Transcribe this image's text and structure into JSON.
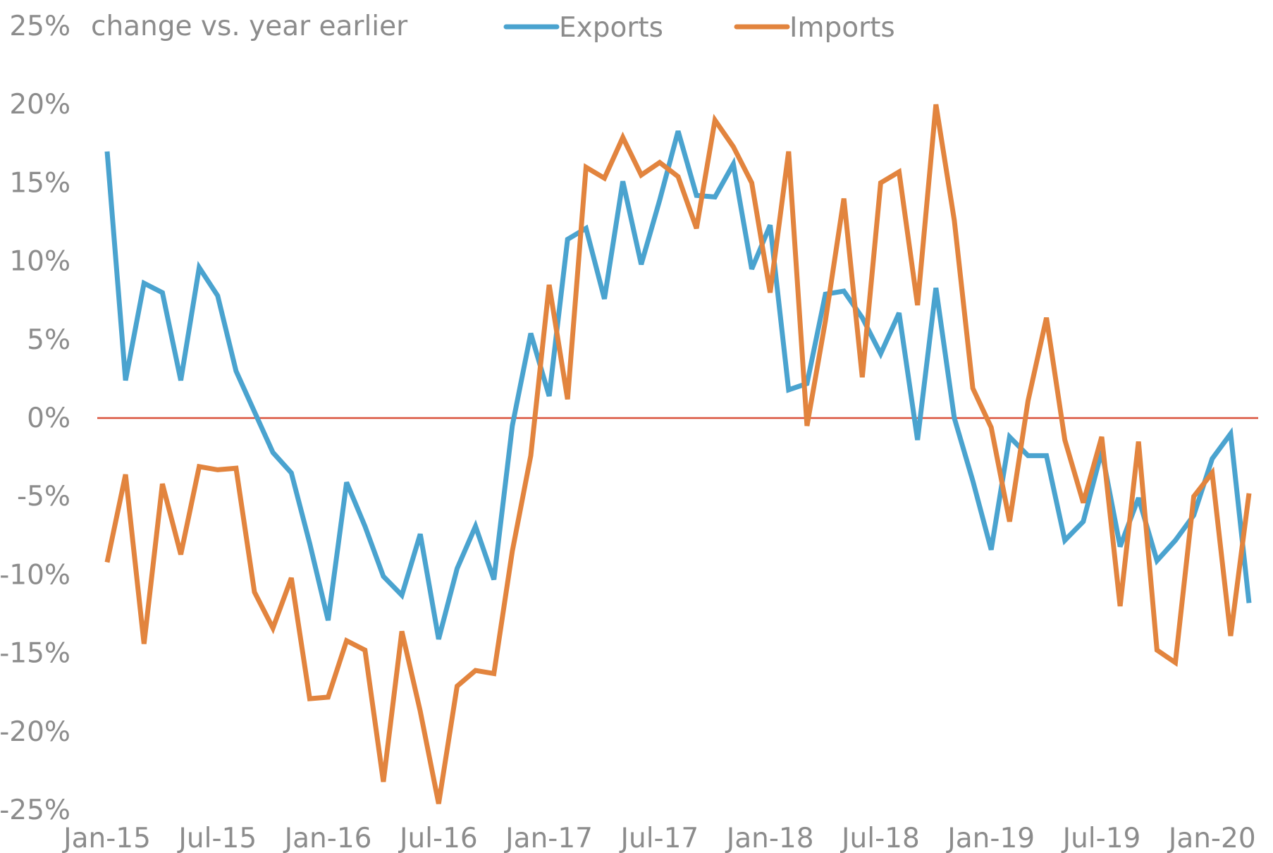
{
  "chart_data": {
    "type": "line",
    "ylabel": "change vs. year earlier",
    "ylim": [
      -25,
      25
    ],
    "yticks": [
      25,
      20,
      15,
      10,
      5,
      0,
      -5,
      -10,
      -15,
      -20,
      -25
    ],
    "ytick_labels": [
      "25%",
      "20%",
      "15%",
      "10%",
      "5%",
      "0%",
      "-5%",
      "-10%",
      "-15%",
      "-20%",
      "-25%"
    ],
    "xtick_labels": [
      "Jan-15",
      "Jul-15",
      "Jan-16",
      "Jul-16",
      "Jan-17",
      "Jul-17",
      "Jan-18",
      "Jul-18",
      "Jan-19",
      "Jul-19",
      "Jan-20"
    ],
    "xtick_index": [
      0,
      6,
      12,
      18,
      24,
      30,
      36,
      42,
      48,
      54,
      60
    ],
    "x_count": 63,
    "zero_line_color": "#d9513a",
    "series": [
      {
        "name": "Exports",
        "color": "#4aa3cf",
        "values": [
          17.0,
          2.4,
          8.6,
          8.0,
          2.4,
          9.6,
          7.8,
          3.0,
          0.4,
          -2.2,
          -3.5,
          -8.0,
          -12.9,
          -4.1,
          -6.9,
          -10.1,
          -11.3,
          -7.4,
          -14.1,
          -9.6,
          -6.9,
          -10.3,
          -0.5,
          5.4,
          1.4,
          11.4,
          12.1,
          7.6,
          15.1,
          9.8,
          13.9,
          18.3,
          14.2,
          14.1,
          16.2,
          9.5,
          12.3,
          1.8,
          2.2,
          7.9,
          8.1,
          6.4,
          4.1,
          6.7,
          -1.4,
          8.3,
          0.0,
          -4.0,
          -8.4,
          -1.2,
          -2.4,
          -2.4,
          -7.8,
          -6.6,
          -2.1,
          -8.2,
          -5.1,
          -9.1,
          -7.8,
          -6.2,
          -2.6,
          -1.0,
          -11.8
        ]
      },
      {
        "name": "Imports",
        "color": "#e2843e",
        "values": [
          -9.2,
          -3.6,
          -14.4,
          -4.2,
          -8.7,
          -3.1,
          -3.3,
          -3.2,
          -11.1,
          -13.4,
          -10.2,
          -17.9,
          -17.8,
          -14.2,
          -14.8,
          -23.2,
          -13.6,
          -18.7,
          -24.6,
          -17.1,
          -16.1,
          -16.3,
          -8.5,
          -2.4,
          8.5,
          1.2,
          16.0,
          15.3,
          17.9,
          15.5,
          16.3,
          15.4,
          12.1,
          19.0,
          17.3,
          15.0,
          8.0,
          17.0,
          -0.5,
          6.2,
          14.0,
          2.6,
          15.0,
          15.7,
          7.2,
          20.0,
          12.6,
          1.9,
          -0.6,
          -6.6,
          1.1,
          6.4,
          -1.4,
          -5.4,
          -1.2,
          -12.0,
          -1.5,
          -14.8,
          -15.6,
          -5.0,
          -3.5,
          -13.9,
          -4.8
        ]
      }
    ]
  }
}
